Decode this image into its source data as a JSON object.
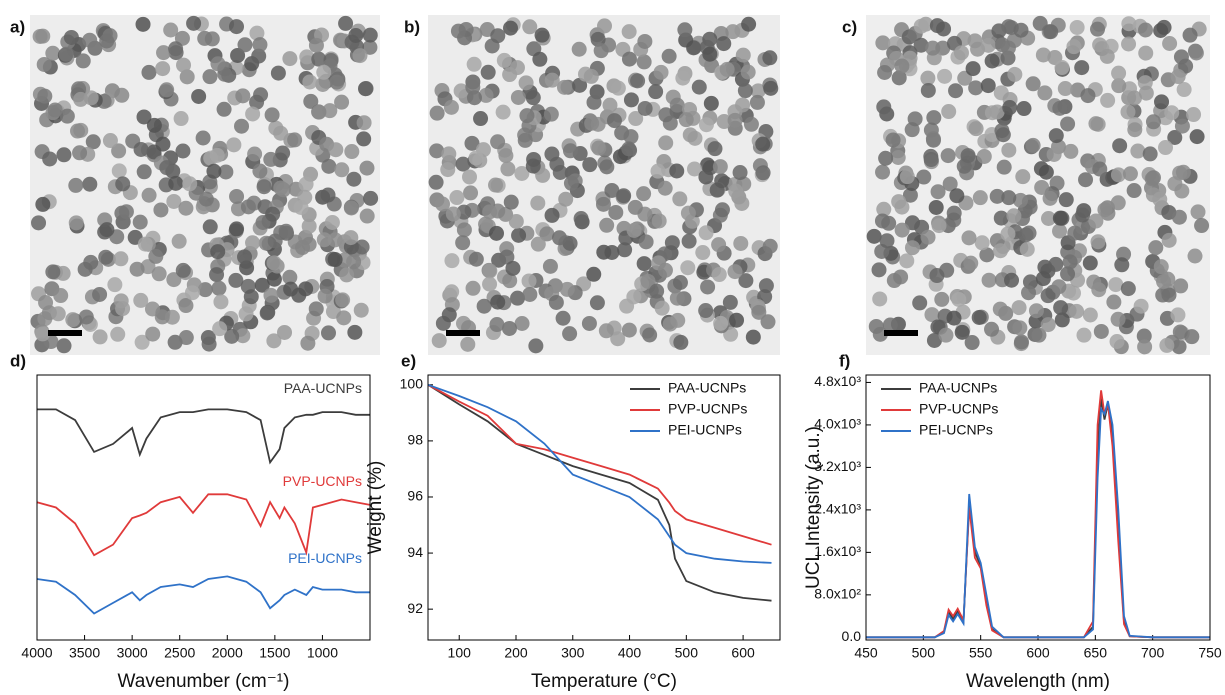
{
  "panels": [
    "a)",
    "b)",
    "c)"
  ],
  "chart_data": [
    {
      "type": "line",
      "label": "d)",
      "x_label": "Wavenumber (cm⁻¹)",
      "x": [
        4000,
        3800,
        3600,
        3400,
        3200,
        3000,
        2920,
        2850,
        2700,
        2500,
        2360,
        2200,
        2000,
        1800,
        1650,
        1550,
        1450,
        1400,
        1290,
        1170,
        1100,
        1000,
        800,
        650,
        500
      ],
      "xlim": [
        4000,
        500
      ],
      "xticks": [
        4000,
        3500,
        3000,
        2500,
        2000,
        1500,
        1000
      ],
      "ylim": [
        0,
        100
      ],
      "series": [
        {
          "name": "PAA-UCNPs",
          "color": "#3c3c3c",
          "values": [
            87,
            87,
            83,
            71,
            74,
            80,
            70,
            76,
            84,
            86,
            86,
            87,
            87,
            86,
            83,
            67,
            72,
            80,
            84,
            85,
            85,
            86,
            86,
            85,
            85
          ]
        },
        {
          "name": "PVP-UCNPs",
          "color": "#e03a3a",
          "values": [
            52,
            50,
            44,
            32,
            36,
            46,
            47,
            48,
            52,
            54,
            48,
            55,
            55,
            53,
            43,
            52,
            46,
            50,
            44,
            33,
            50,
            51,
            53,
            52,
            51
          ]
        },
        {
          "name": "PEI-UCNPs",
          "color": "#2f72c8",
          "values": [
            23,
            22,
            17,
            10,
            14,
            18,
            15,
            17,
            20,
            21,
            20,
            23,
            24,
            22,
            18,
            12,
            15,
            17,
            19,
            17,
            20,
            19,
            19,
            18,
            18
          ]
        }
      ]
    },
    {
      "type": "line",
      "label": "e)",
      "x_label": "Temperature (°C)",
      "y_label": "Weight (%)",
      "legend": "upper right",
      "x": [
        45,
        100,
        150,
        200,
        250,
        300,
        350,
        400,
        450,
        470,
        480,
        500,
        550,
        600,
        650
      ],
      "xlim": [
        45,
        665
      ],
      "xticks": [
        100,
        200,
        300,
        400,
        500,
        600
      ],
      "ylim": [
        90.9,
        100.35
      ],
      "yticks": [
        92,
        94,
        96,
        98,
        100
      ],
      "series": [
        {
          "name": "PAA-UCNPs",
          "color": "#3c3c3c",
          "values": [
            100,
            99.3,
            98.7,
            97.9,
            97.5,
            97.1,
            96.8,
            96.5,
            95.9,
            95,
            93.8,
            93,
            92.6,
            92.4,
            92.3
          ]
        },
        {
          "name": "PVP-UCNPs",
          "color": "#e03a3a",
          "values": [
            100,
            99.4,
            98.9,
            97.9,
            97.7,
            97.4,
            97.1,
            96.8,
            96.3,
            95.8,
            95.5,
            95.2,
            94.9,
            94.6,
            94.3
          ]
        },
        {
          "name": "PEI-UCNPs",
          "color": "#2f72c8",
          "values": [
            100,
            99.6,
            99.2,
            98.7,
            97.9,
            96.8,
            96.4,
            96,
            95.2,
            94.6,
            94.3,
            94,
            93.8,
            93.7,
            93.65
          ]
        }
      ]
    },
    {
      "type": "line",
      "label": "f)",
      "x_label": "Wavelength (nm)",
      "y_label": "UCL Intensity (a.u.)",
      "legend": "upper left",
      "x": [
        450,
        510,
        518,
        522,
        526,
        530,
        535,
        540,
        545,
        550,
        555,
        560,
        570,
        600,
        640,
        648,
        652,
        655,
        658,
        661,
        665,
        670,
        675,
        680,
        700,
        750
      ],
      "xlim": [
        450,
        750
      ],
      "xticks": [
        450,
        500,
        550,
        600,
        650,
        700,
        750
      ],
      "ylim": [
        -50,
        4940
      ],
      "yticks": [
        {
          "value": 0,
          "label": "0.0"
        },
        {
          "value": 800,
          "label": "8.0x10²"
        },
        {
          "value": 1600,
          "label": "1.6x10³"
        },
        {
          "value": 2400,
          "label": "2.4x10³"
        },
        {
          "value": 3200,
          "label": "3.2x10³"
        },
        {
          "value": 4000,
          "label": "4.0x10³"
        },
        {
          "value": 4800,
          "label": "4.8x10³"
        }
      ],
      "series": [
        {
          "name": "PAA-UCNPs",
          "color": "#3c3c3c",
          "values": [
            0,
            0,
            100,
            480,
            350,
            500,
            300,
            2500,
            1600,
            1350,
            700,
            150,
            0,
            0,
            0,
            200,
            3500,
            4500,
            4100,
            4400,
            3800,
            2000,
            300,
            20,
            0,
            0
          ]
        },
        {
          "name": "PVP-UCNPs",
          "color": "#e03a3a",
          "values": [
            0,
            0,
            120,
            520,
            400,
            540,
            320,
            2450,
            1500,
            1300,
            600,
            130,
            0,
            0,
            0,
            300,
            4000,
            4650,
            4200,
            4400,
            3600,
            1800,
            250,
            20,
            0,
            0
          ]
        },
        {
          "name": "PEI-UCNPs",
          "color": "#2f72c8",
          "values": [
            0,
            0,
            80,
            420,
            300,
            440,
            260,
            2700,
            1700,
            1400,
            800,
            200,
            0,
            0,
            0,
            150,
            3000,
            4300,
            4200,
            4450,
            4000,
            2400,
            400,
            30,
            0,
            0
          ]
        }
      ]
    }
  ]
}
